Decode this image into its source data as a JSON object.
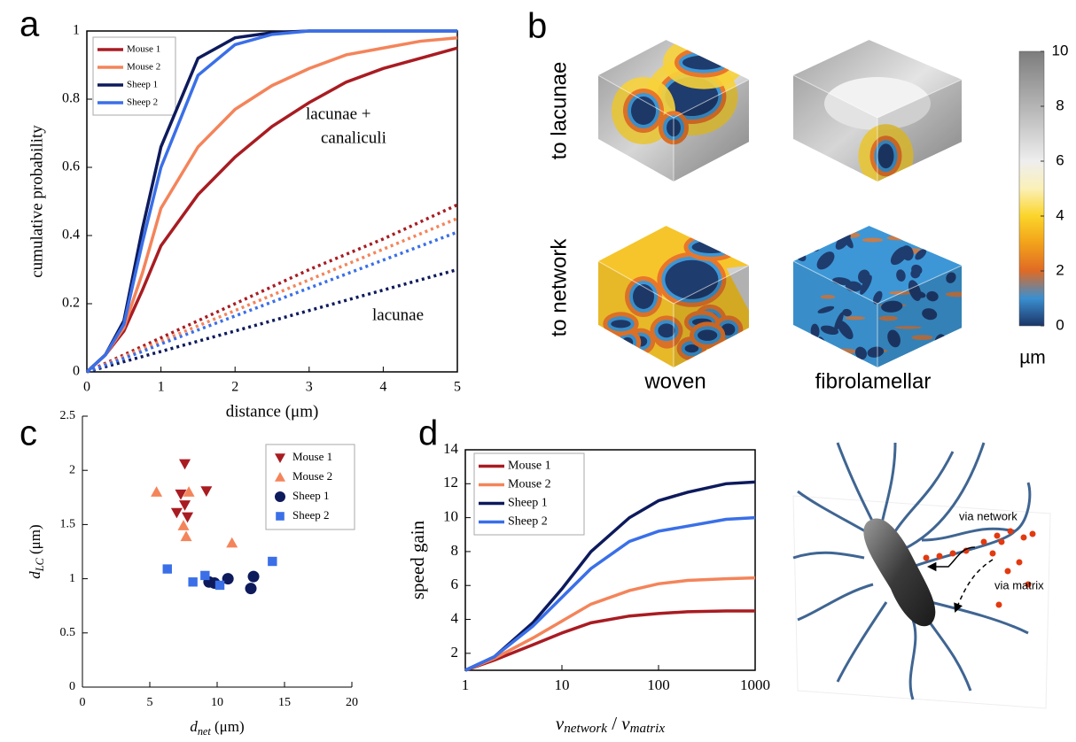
{
  "chart_data": [
    {
      "type": "line",
      "panel": "a",
      "xlabel": "distance (μm)",
      "ylabel": "cumulative probability",
      "x": [
        0,
        0.25,
        0.5,
        0.75,
        1,
        1.5,
        2,
        2.5,
        3,
        3.5,
        4,
        4.5,
        5
      ],
      "series": [
        {
          "name": "Mouse 1",
          "color": "#a81c22",
          "values": [
            0,
            0.05,
            0.12,
            0.24,
            0.37,
            0.52,
            0.63,
            0.72,
            0.79,
            0.85,
            0.89,
            0.92,
            0.95
          ],
          "dotted_values": [
            0,
            0.025,
            0.05,
            0.075,
            0.1,
            0.15,
            0.2,
            0.25,
            0.3,
            0.345,
            0.39,
            0.44,
            0.49
          ]
        },
        {
          "name": "Mouse 2",
          "color": "#f4845a",
          "values": [
            0,
            0.05,
            0.13,
            0.29,
            0.48,
            0.66,
            0.77,
            0.84,
            0.89,
            0.93,
            0.95,
            0.97,
            0.98
          ],
          "dotted_values": [
            0,
            0.022,
            0.045,
            0.068,
            0.09,
            0.135,
            0.18,
            0.225,
            0.27,
            0.315,
            0.36,
            0.405,
            0.45
          ]
        },
        {
          "name": "Sheep 1",
          "color": "#0d1a5c",
          "values": [
            0,
            0.05,
            0.15,
            0.42,
            0.66,
            0.92,
            0.98,
            0.995,
            1,
            1,
            1,
            1,
            1
          ],
          "dotted_values": [
            0,
            0.015,
            0.03,
            0.045,
            0.06,
            0.09,
            0.12,
            0.15,
            0.18,
            0.21,
            0.24,
            0.27,
            0.3
          ]
        },
        {
          "name": "Sheep 2",
          "color": "#3a6fe8",
          "values": [
            0,
            0.05,
            0.14,
            0.38,
            0.6,
            0.87,
            0.96,
            0.99,
            1,
            1,
            1,
            1,
            1
          ],
          "dotted_values": [
            0,
            0.02,
            0.04,
            0.06,
            0.082,
            0.123,
            0.164,
            0.205,
            0.246,
            0.287,
            0.328,
            0.369,
            0.41
          ]
        }
      ],
      "xlim": [
        0,
        5
      ],
      "xticks": [
        0,
        1,
        2,
        3,
        4,
        5
      ],
      "ylim": [
        0,
        1
      ],
      "yticks": [
        0,
        0.2,
        0.4,
        0.6,
        0.8,
        1
      ],
      "annotations": [
        "lacunae +",
        "canaliculi",
        "lacunae"
      ]
    },
    {
      "type": "image",
      "panel": "b",
      "rows": [
        "to lacunae",
        "to network"
      ],
      "columns": [
        "woven",
        "fibrolamellar"
      ],
      "colorbar": {
        "label": "µm",
        "lim": [
          0,
          10
        ],
        "ticks": [
          0,
          2,
          4,
          6,
          8,
          10
        ]
      }
    },
    {
      "type": "scatter",
      "panel": "c",
      "xlabel": [
        {
          "text": "d",
          "sub": "net"
        },
        {
          "text": " (μm)"
        }
      ],
      "ylabel": [
        {
          "text": "d",
          "sub": "LC"
        },
        {
          "text": " (μm)"
        }
      ],
      "series": [
        {
          "name": "Mouse 1",
          "color": "#a81c22",
          "marker": "triangle-down",
          "x": [
            7.6,
            7.3,
            7.6,
            7.0,
            9.2,
            7.8
          ],
          "values": [
            2.06,
            1.78,
            1.68,
            1.61,
            1.81,
            1.57
          ]
        },
        {
          "name": "Mouse 2",
          "color": "#f4845a",
          "marker": "triangle-up",
          "x": [
            5.5,
            7.9,
            7.5,
            7.7,
            11.1
          ],
          "values": [
            1.8,
            1.8,
            1.49,
            1.39,
            1.33
          ]
        },
        {
          "name": "Sheep 1",
          "color": "#0d1a5c",
          "marker": "circle",
          "x": [
            9.4,
            9.8,
            10.8,
            12.7,
            12.5
          ],
          "values": [
            0.97,
            0.96,
            1.0,
            1.02,
            0.91
          ]
        },
        {
          "name": "Sheep 2",
          "color": "#3a6fe8",
          "marker": "square",
          "x": [
            6.3,
            8.2,
            9.1,
            10.2,
            14.1
          ],
          "values": [
            1.09,
            0.97,
            1.03,
            0.94,
            1.16
          ]
        }
      ],
      "xlim": [
        0,
        20
      ],
      "xticks": [
        0,
        5,
        10,
        15,
        20
      ],
      "ylim": [
        0,
        2.5
      ],
      "yticks": [
        0,
        0.5,
        1,
        1.5,
        2,
        2.5
      ]
    },
    {
      "type": "line",
      "panel": "d",
      "xscale": "log",
      "xlabel": [
        {
          "text": "v",
          "sub": "network"
        },
        {
          "text": " / "
        },
        {
          "text": "v",
          "sub": "matrix"
        }
      ],
      "ylabel": "speed gain",
      "x": [
        1,
        2,
        5,
        10,
        20,
        50,
        100,
        200,
        500,
        1000
      ],
      "series": [
        {
          "name": "Mouse 1",
          "color": "#a81c22",
          "values": [
            1,
            1.6,
            2.5,
            3.2,
            3.8,
            4.2,
            4.35,
            4.45,
            4.5,
            4.5
          ]
        },
        {
          "name": "Mouse 2",
          "color": "#f4845a",
          "values": [
            1,
            1.7,
            2.9,
            3.9,
            4.9,
            5.7,
            6.1,
            6.3,
            6.4,
            6.45
          ]
        },
        {
          "name": "Sheep 1",
          "color": "#0d1a5c",
          "values": [
            1,
            1.8,
            3.8,
            5.8,
            8.0,
            10.0,
            11.0,
            11.5,
            12.0,
            12.1
          ]
        },
        {
          "name": "Sheep 2",
          "color": "#3a6fe8",
          "values": [
            1,
            1.8,
            3.6,
            5.3,
            7.0,
            8.6,
            9.2,
            9.5,
            9.9,
            10.0
          ]
        }
      ],
      "xlim": [
        1,
        1000
      ],
      "xticks": [
        1,
        10,
        100,
        1000
      ],
      "ylim": [
        1,
        14
      ],
      "yticks": [
        2,
        4,
        6,
        8,
        10,
        12,
        14
      ]
    }
  ],
  "diagram": {
    "labels": [
      "via network",
      "via matrix"
    ]
  }
}
